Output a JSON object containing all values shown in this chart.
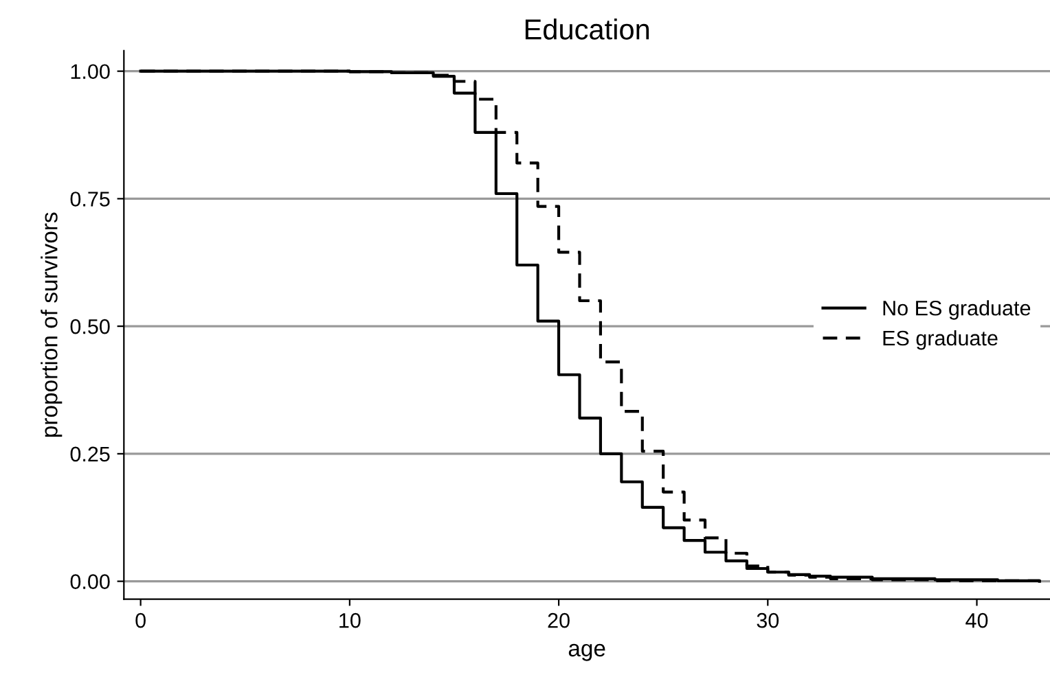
{
  "chart_data": {
    "type": "step",
    "title": "Education",
    "xlabel": "age",
    "ylabel": "proportion of survivors",
    "xlim": [
      -0.8,
      43.5
    ],
    "xticks": [
      0,
      10,
      20,
      30,
      40
    ],
    "ylim": [
      -0.035,
      1.04
    ],
    "yticks": [
      {
        "value": 0,
        "label": "0.00"
      },
      {
        "value": 0.25,
        "label": "0.25"
      },
      {
        "value": 0.5,
        "label": "0.50"
      },
      {
        "value": 0.75,
        "label": "0.75"
      },
      {
        "value": 1,
        "label": "1.00"
      }
    ],
    "grid": "y",
    "legend": "right",
    "series": [
      {
        "name": "No ES graduate",
        "color": "#000000",
        "line_style": "solid",
        "x": [
          0,
          10,
          12,
          14,
          15,
          16,
          17,
          18,
          19,
          20,
          21,
          22,
          23,
          24,
          25,
          26,
          27,
          28,
          29,
          30,
          31,
          32,
          33,
          35,
          38,
          41,
          43
        ],
        "values": [
          1,
          0.999,
          0.997,
          0.99,
          0.957,
          0.88,
          0.76,
          0.62,
          0.51,
          0.405,
          0.32,
          0.25,
          0.195,
          0.145,
          0.105,
          0.08,
          0.057,
          0.04,
          0.025,
          0.018,
          0.013,
          0.01,
          0.008,
          0.005,
          0.003,
          0.001,
          0
        ]
      },
      {
        "name": "ES graduate",
        "color": "#000000",
        "line_style": "dashed",
        "x": [
          0,
          10,
          12,
          14,
          15,
          16,
          17,
          18,
          19,
          20,
          21,
          22,
          23,
          24,
          25,
          26,
          27,
          28,
          29,
          30,
          31,
          32,
          33,
          35,
          38,
          43
        ],
        "values": [
          1,
          0.999,
          0.997,
          0.992,
          0.98,
          0.945,
          0.88,
          0.82,
          0.735,
          0.645,
          0.55,
          0.43,
          0.333,
          0.255,
          0.175,
          0.12,
          0.085,
          0.055,
          0.03,
          0.018,
          0.012,
          0.008,
          0.005,
          0.003,
          0.001,
          0
        ]
      }
    ]
  }
}
